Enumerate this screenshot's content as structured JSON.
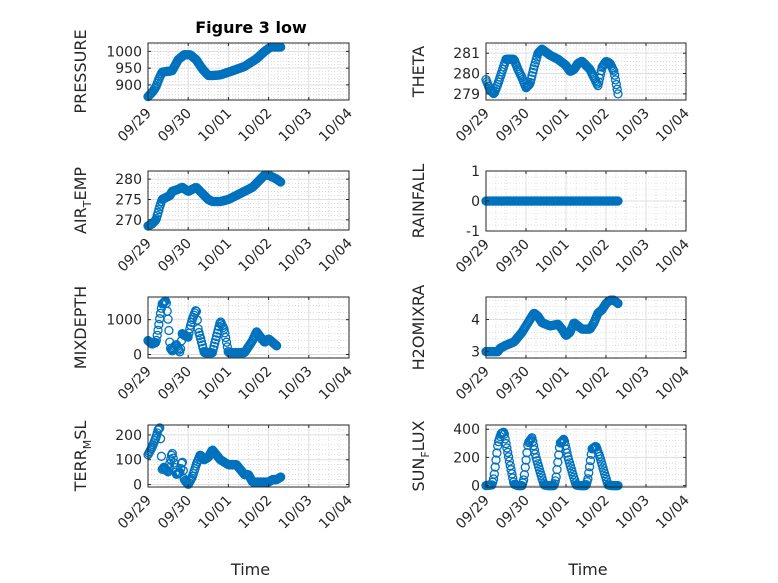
{
  "figure_title": "Figure 3 low",
  "colors": {
    "marker": "#0072BD",
    "axis": "#262626",
    "grid": "#dfdfdf",
    "minor_grid": "#c8c8c8"
  },
  "chart_data": [
    {
      "id": "pressure",
      "type": "scatter",
      "title": "Figure 3 low",
      "ylabel": "PRESSURE",
      "ylabel_sub": "",
      "ylabel_tail": "",
      "ylim": [
        855,
        1025
      ],
      "yticks": [
        900,
        950,
        1000
      ],
      "xlim": [
        0,
        5
      ],
      "xticks": [
        "09/29",
        "09/30",
        "10/01",
        "10/02",
        "10/03",
        "10/04"
      ],
      "xlabel": "",
      "keys": [
        [
          0,
          865
        ],
        [
          0.12,
          880
        ],
        [
          0.2,
          895
        ],
        [
          0.28,
          920
        ],
        [
          0.35,
          938
        ],
        [
          0.45,
          940
        ],
        [
          0.6,
          942
        ],
        [
          0.75,
          975
        ],
        [
          0.9,
          990
        ],
        [
          1.05,
          990
        ],
        [
          1.2,
          975
        ],
        [
          1.35,
          948
        ],
        [
          1.5,
          928
        ],
        [
          1.6,
          928
        ],
        [
          1.8,
          930
        ],
        [
          2.1,
          942
        ],
        [
          2.4,
          955
        ],
        [
          2.7,
          978
        ],
        [
          2.9,
          1000
        ],
        [
          3.05,
          1013
        ],
        [
          3.3,
          1013
        ]
      ]
    },
    {
      "id": "theta",
      "type": "scatter",
      "ylabel": "THETA",
      "ylabel_sub": "",
      "ylabel_tail": "",
      "ylim": [
        278.7,
        281.5
      ],
      "yticks": [
        279,
        280,
        281
      ],
      "xlim": [
        0,
        5
      ],
      "xticks": [
        "09/29",
        "09/30",
        "10/01",
        "10/02",
        "10/03",
        "10/04"
      ],
      "xlabel": "",
      "keys": [
        [
          0,
          279.7
        ],
        [
          0.1,
          279.2
        ],
        [
          0.2,
          279.0
        ],
        [
          0.3,
          279.5
        ],
        [
          0.4,
          280.1
        ],
        [
          0.5,
          280.7
        ],
        [
          0.7,
          280.7
        ],
        [
          0.8,
          280.2
        ],
        [
          0.9,
          279.8
        ],
        [
          1.0,
          279.3
        ],
        [
          1.1,
          279.5
        ],
        [
          1.2,
          280.3
        ],
        [
          1.3,
          281.0
        ],
        [
          1.4,
          281.2
        ],
        [
          1.6,
          280.9
        ],
        [
          1.8,
          280.7
        ],
        [
          2.0,
          280.4
        ],
        [
          2.1,
          280.1
        ],
        [
          2.2,
          280.2
        ],
        [
          2.3,
          280.5
        ],
        [
          2.4,
          280.6
        ],
        [
          2.6,
          280.2
        ],
        [
          2.7,
          279.8
        ],
        [
          2.8,
          279.4
        ],
        [
          2.9,
          280.3
        ],
        [
          3.0,
          280.6
        ],
        [
          3.1,
          280.5
        ],
        [
          3.2,
          280.1
        ],
        [
          3.3,
          279.0
        ]
      ]
    },
    {
      "id": "air_temp",
      "type": "scatter",
      "ylabel": "AIR",
      "ylabel_sub": "T",
      "ylabel_tail": "EMP",
      "ylim": [
        267.5,
        282
      ],
      "yticks": [
        270,
        275,
        280
      ],
      "xlim": [
        0,
        5
      ],
      "xticks": [
        "09/29",
        "09/30",
        "10/01",
        "10/02",
        "10/03",
        "10/04"
      ],
      "xlabel": "",
      "keys": [
        [
          0,
          268.5
        ],
        [
          0.1,
          269
        ],
        [
          0.2,
          270
        ],
        [
          0.3,
          273.5
        ],
        [
          0.35,
          275
        ],
        [
          0.45,
          275.5
        ],
        [
          0.55,
          276
        ],
        [
          0.6,
          277
        ],
        [
          0.75,
          277.5
        ],
        [
          0.85,
          278
        ],
        [
          1.0,
          277
        ],
        [
          1.1,
          277.5
        ],
        [
          1.2,
          278
        ],
        [
          1.3,
          277
        ],
        [
          1.4,
          276
        ],
        [
          1.5,
          275
        ],
        [
          1.6,
          274.5
        ],
        [
          1.8,
          274.5
        ],
        [
          2.0,
          275
        ],
        [
          2.2,
          276
        ],
        [
          2.4,
          277
        ],
        [
          2.6,
          278
        ],
        [
          2.7,
          279
        ],
        [
          2.8,
          280
        ],
        [
          2.9,
          281
        ],
        [
          3.0,
          281
        ],
        [
          3.1,
          280.5
        ],
        [
          3.2,
          280
        ],
        [
          3.3,
          279.3
        ]
      ]
    },
    {
      "id": "rainfall",
      "type": "scatter",
      "ylabel": "RAINFALL",
      "ylabel_sub": "",
      "ylabel_tail": "",
      "ylim": [
        -1,
        1
      ],
      "yticks": [
        -1,
        0,
        1
      ],
      "xlim": [
        0,
        5
      ],
      "xticks": [
        "09/29",
        "09/30",
        "10/01",
        "10/02",
        "10/03",
        "10/04"
      ],
      "xlabel": "",
      "keys": [
        [
          0,
          0
        ],
        [
          3.3,
          0
        ]
      ]
    },
    {
      "id": "mixdepth",
      "type": "scatter",
      "ylabel": "MIXDEPTH",
      "ylabel_sub": "",
      "ylabel_tail": "",
      "ylim": [
        -100,
        1650
      ],
      "yticks": [
        0,
        1000
      ],
      "xlim": [
        0,
        5
      ],
      "xticks": [
        "09/29",
        "09/30",
        "10/01",
        "10/02",
        "10/03",
        "10/04"
      ],
      "xlabel": "",
      "keys": [
        [
          0,
          400
        ],
        [
          0.1,
          300
        ],
        [
          0.2,
          350
        ],
        [
          0.25,
          700
        ],
        [
          0.3,
          1100
        ],
        [
          0.35,
          1450
        ],
        [
          0.45,
          1550
        ],
        [
          0.5,
          1000
        ],
        [
          0.55,
          200
        ],
        [
          0.6,
          100
        ],
        [
          0.7,
          300
        ],
        [
          0.8,
          50
        ],
        [
          0.85,
          600
        ],
        [
          0.9,
          550
        ],
        [
          1.0,
          500
        ],
        [
          1.05,
          800
        ],
        [
          1.1,
          1000
        ],
        [
          1.2,
          1300
        ],
        [
          1.25,
          700
        ],
        [
          1.3,
          500
        ],
        [
          1.4,
          50
        ],
        [
          1.5,
          50
        ],
        [
          1.6,
          50
        ],
        [
          1.7,
          500
        ],
        [
          1.8,
          950
        ],
        [
          1.9,
          700
        ],
        [
          2.0,
          50
        ],
        [
          2.2,
          50
        ],
        [
          2.4,
          50
        ],
        [
          2.6,
          400
        ],
        [
          2.7,
          650
        ],
        [
          2.8,
          500
        ],
        [
          2.9,
          350
        ],
        [
          3.0,
          450
        ],
        [
          3.1,
          350
        ],
        [
          3.2,
          250
        ]
      ]
    },
    {
      "id": "h2omixra",
      "type": "scatter",
      "ylabel": "H2OMIXRA",
      "ylabel_sub": "",
      "ylabel_tail": "",
      "ylim": [
        2.8,
        4.7
      ],
      "yticks": [
        3,
        4
      ],
      "xlim": [
        0,
        5
      ],
      "xticks": [
        "09/29",
        "09/30",
        "10/01",
        "10/02",
        "10/03",
        "10/04"
      ],
      "xlabel": "",
      "keys": [
        [
          0,
          3.0
        ],
        [
          0.3,
          3.0
        ],
        [
          0.35,
          3.1
        ],
        [
          0.5,
          3.2
        ],
        [
          0.7,
          3.3
        ],
        [
          0.9,
          3.6
        ],
        [
          1.1,
          4.0
        ],
        [
          1.2,
          4.2
        ],
        [
          1.3,
          4.1
        ],
        [
          1.4,
          3.9
        ],
        [
          1.6,
          3.8
        ],
        [
          1.8,
          3.85
        ],
        [
          1.9,
          3.7
        ],
        [
          2.0,
          3.5
        ],
        [
          2.1,
          3.6
        ],
        [
          2.2,
          3.9
        ],
        [
          2.4,
          3.7
        ],
        [
          2.6,
          3.7
        ],
        [
          2.7,
          3.9
        ],
        [
          2.8,
          4.2
        ],
        [
          2.9,
          4.3
        ],
        [
          3.0,
          4.5
        ],
        [
          3.1,
          4.6
        ],
        [
          3.2,
          4.6
        ],
        [
          3.3,
          4.5
        ]
      ]
    },
    {
      "id": "terr_msl",
      "type": "scatter",
      "ylabel": "TERR",
      "ylabel_sub": "M",
      "ylabel_tail": "SL",
      "ylim": [
        -10,
        240
      ],
      "yticks": [
        0,
        100,
        200
      ],
      "xlim": [
        0,
        5
      ],
      "xticks": [
        "09/29",
        "09/30",
        "10/01",
        "10/02",
        "10/03",
        "10/04"
      ],
      "xlabel": "Time",
      "keys": [
        [
          0,
          120
        ],
        [
          0.1,
          150
        ],
        [
          0.2,
          190
        ],
        [
          0.25,
          220
        ],
        [
          0.3,
          230
        ],
        [
          0.35,
          60
        ],
        [
          0.4,
          70
        ],
        [
          0.5,
          50
        ],
        [
          0.6,
          130
        ],
        [
          0.7,
          40
        ],
        [
          0.8,
          50
        ],
        [
          0.85,
          100
        ],
        [
          0.9,
          20
        ],
        [
          1.0,
          0
        ],
        [
          1.1,
          30
        ],
        [
          1.2,
          80
        ],
        [
          1.3,
          120
        ],
        [
          1.4,
          100
        ],
        [
          1.5,
          110
        ],
        [
          1.6,
          140
        ],
        [
          1.7,
          120
        ],
        [
          1.8,
          100
        ],
        [
          1.9,
          90
        ],
        [
          2.0,
          80
        ],
        [
          2.2,
          80
        ],
        [
          2.4,
          40
        ],
        [
          2.5,
          40
        ],
        [
          2.6,
          10
        ],
        [
          2.8,
          10
        ],
        [
          3.0,
          10
        ],
        [
          3.1,
          20
        ],
        [
          3.2,
          20
        ],
        [
          3.3,
          30
        ]
      ]
    },
    {
      "id": "sun_flux",
      "type": "scatter",
      "ylabel": "SUN",
      "ylabel_sub": "F",
      "ylabel_tail": "LUX",
      "ylim": [
        -10,
        430
      ],
      "yticks": [
        0,
        200,
        400
      ],
      "xlim": [
        0,
        5
      ],
      "xticks": [
        "09/29",
        "09/30",
        "10/01",
        "10/02",
        "10/03",
        "10/04"
      ],
      "xlabel": "Time",
      "keys": [
        [
          0,
          0
        ],
        [
          0.15,
          5
        ],
        [
          0.2,
          60
        ],
        [
          0.3,
          300
        ],
        [
          0.38,
          370
        ],
        [
          0.45,
          380
        ],
        [
          0.5,
          300
        ],
        [
          0.6,
          150
        ],
        [
          0.7,
          10
        ],
        [
          0.8,
          0
        ],
        [
          0.9,
          0
        ],
        [
          0.95,
          50
        ],
        [
          1.05,
          300
        ],
        [
          1.15,
          340
        ],
        [
          1.25,
          200
        ],
        [
          1.35,
          100
        ],
        [
          1.45,
          5
        ],
        [
          1.55,
          0
        ],
        [
          1.7,
          0
        ],
        [
          1.75,
          50
        ],
        [
          1.85,
          300
        ],
        [
          1.95,
          330
        ],
        [
          2.05,
          200
        ],
        [
          2.15,
          100
        ],
        [
          2.25,
          5
        ],
        [
          2.35,
          0
        ],
        [
          2.5,
          0
        ],
        [
          2.55,
          50
        ],
        [
          2.65,
          260
        ],
        [
          2.75,
          280
        ],
        [
          2.85,
          200
        ],
        [
          2.95,
          100
        ],
        [
          3.05,
          5
        ],
        [
          3.15,
          0
        ],
        [
          3.3,
          0
        ]
      ]
    }
  ]
}
